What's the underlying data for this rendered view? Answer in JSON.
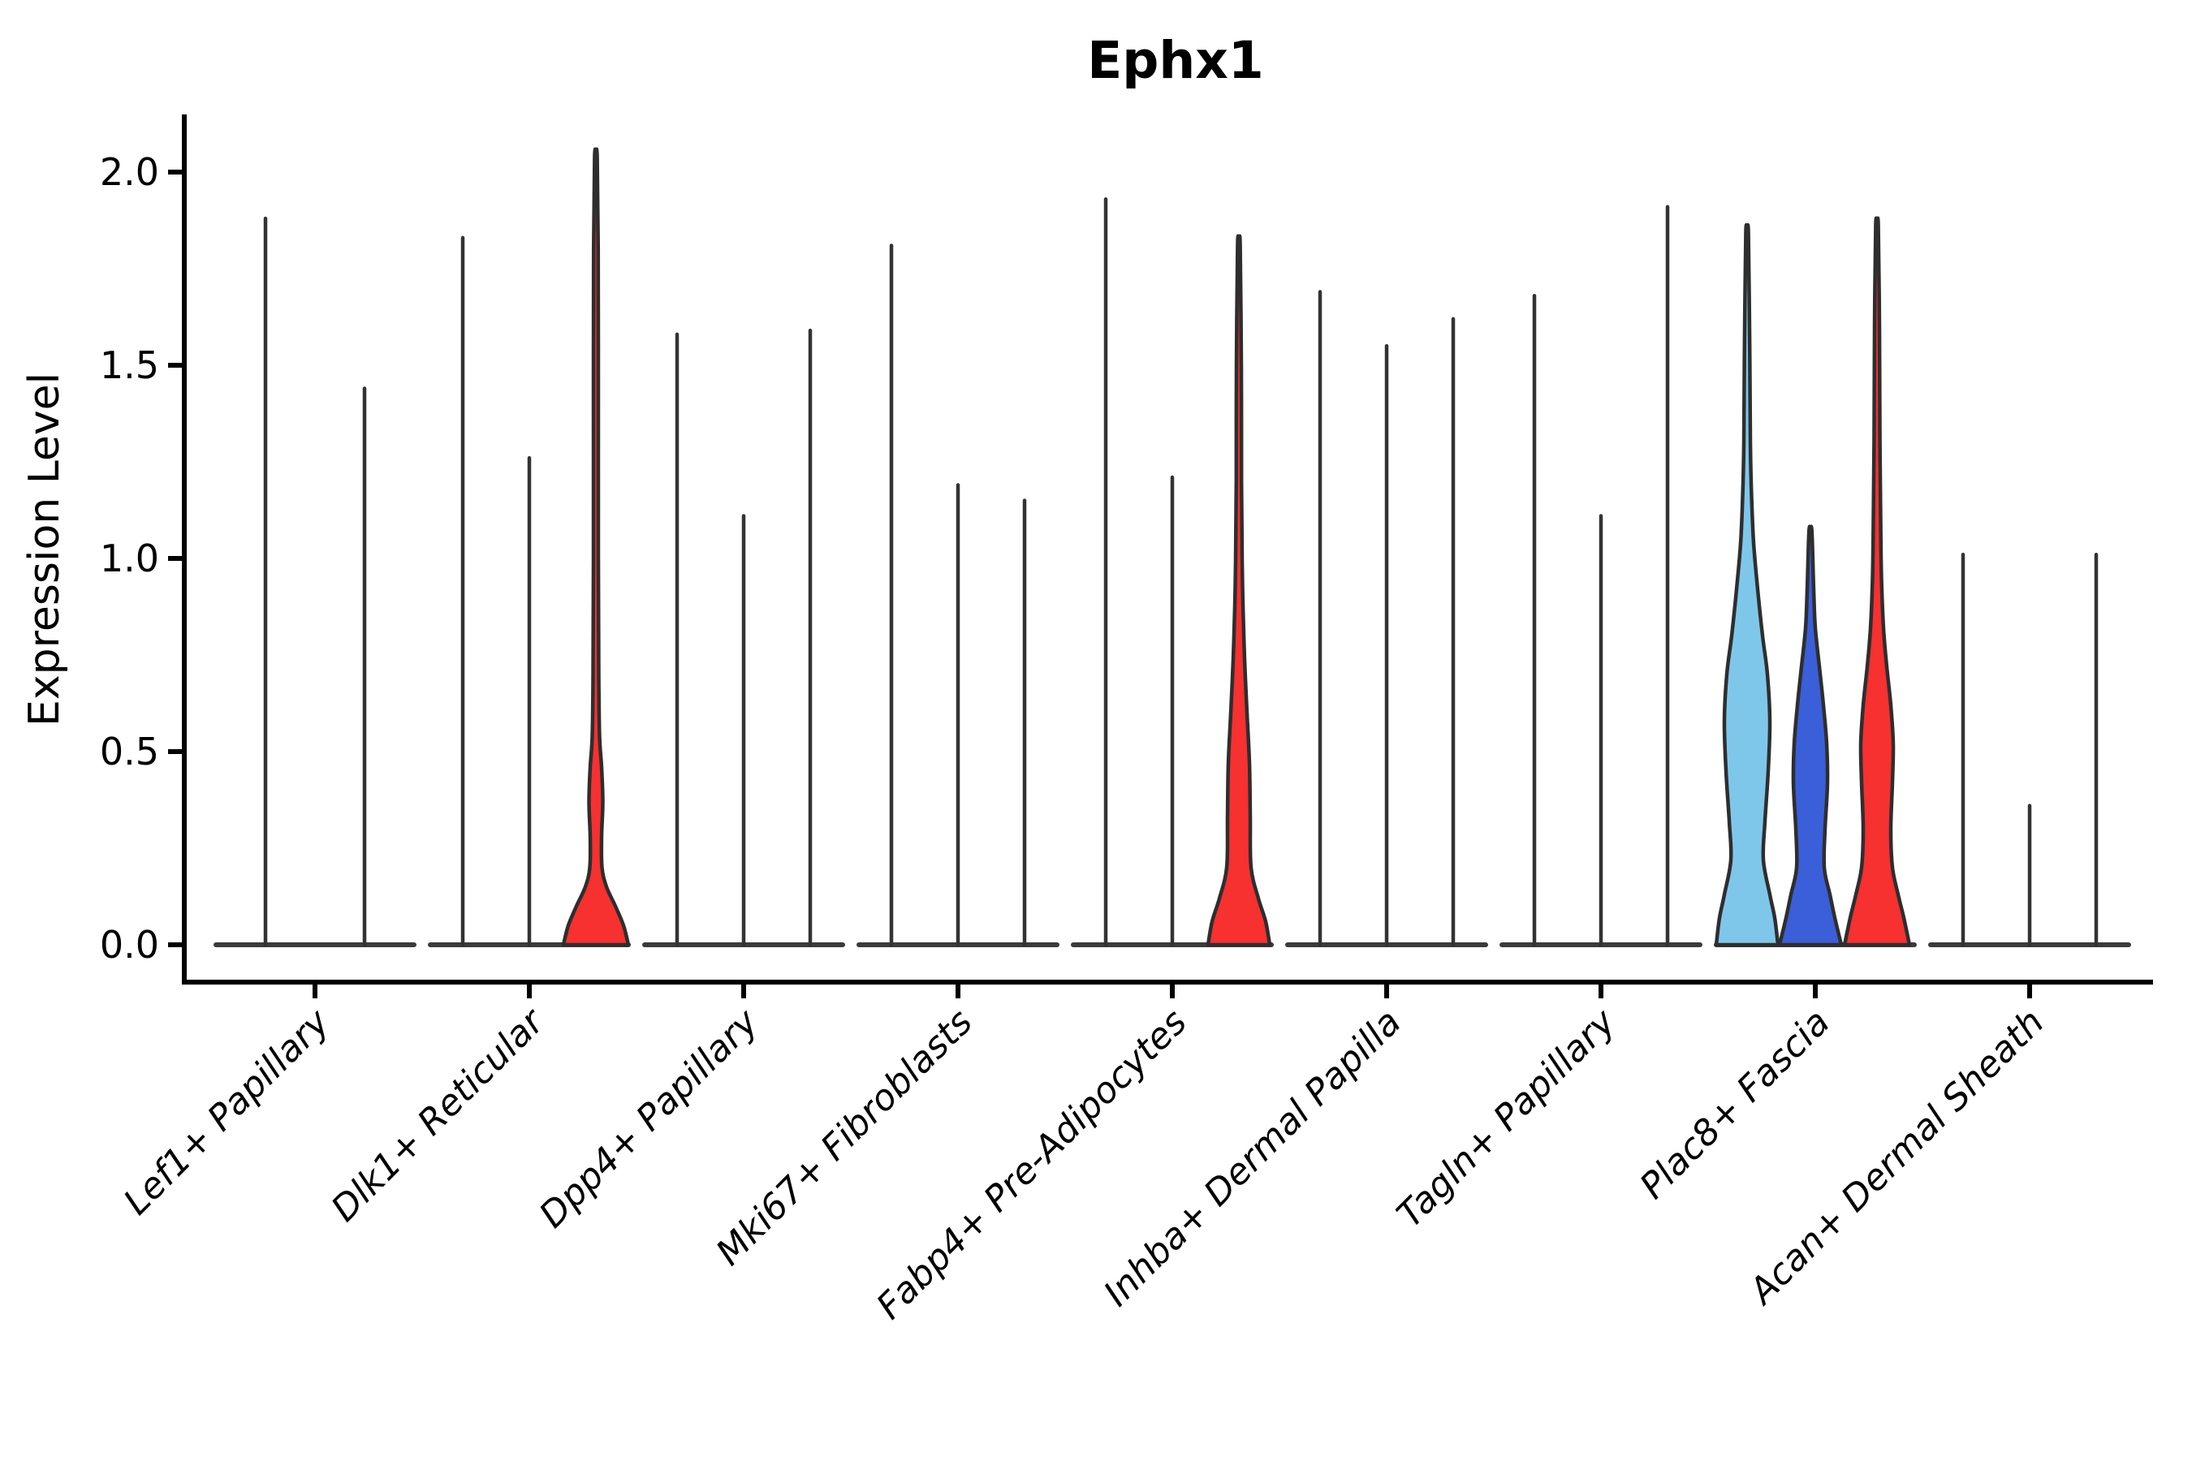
{
  "title": "Ephx1",
  "y_axis": {
    "label": "Expression Level",
    "tick_labels": [
      "0.0",
      "0.5",
      "1.0",
      "1.5",
      "2.0"
    ]
  },
  "chart_data": {
    "type": "violin",
    "title": "Ephx1",
    "xlabel": "",
    "ylabel": "Expression Level",
    "ylim": [
      -0.1,
      2.15
    ],
    "y_ticks": [
      0.0,
      0.5,
      1.0,
      1.5,
      2.0
    ],
    "grid": false,
    "legend": "none",
    "tick_label_style": "italic, rotated 45deg",
    "categories": [
      "Lef1+ Papillary",
      "Dlk1+ Reticular",
      "Dpp4+ Papillary",
      "Mki67+ Fibroblasts",
      "Fabp4+ Pre-Adipocytes",
      "Inhba+ Dermal Papilla",
      "Tagln+ Papillary",
      "Plac8+ Fascia",
      "Acan+ Dermal Sheath"
    ],
    "palette": {
      "light_blue": "#7fc7ea",
      "dark_blue": "#3a5fd9",
      "red": "#f73030",
      "outline": "#2e2e2e",
      "spike_line": "#333333",
      "baseline": "#3b3b3b"
    },
    "groups": [
      {
        "category": "Lef1+ Papillary",
        "violins": [
          {
            "offset": -61,
            "max": 1.88,
            "style": "line"
          },
          {
            "offset": 61,
            "max": 1.44,
            "style": "line"
          }
        ]
      },
      {
        "category": "Dlk1+ Reticular",
        "violins": [
          {
            "offset": -82,
            "max": 1.83,
            "style": "line"
          },
          {
            "offset": 0,
            "max": 1.26,
            "style": "line"
          },
          {
            "offset": 82,
            "max": 2.04,
            "style": "violin",
            "fill": "#f73030",
            "profile": [
              [
                0,
                40
              ],
              [
                0.05,
                34
              ],
              [
                0.1,
                24
              ],
              [
                0.15,
                13
              ],
              [
                0.2,
                7.5
              ],
              [
                0.28,
                7
              ],
              [
                0.37,
                8.5
              ],
              [
                0.46,
                7
              ],
              [
                0.54,
                4.5
              ],
              [
                0.7,
                3.5
              ],
              [
                1.0,
                3
              ],
              [
                1.4,
                3
              ],
              [
                1.8,
                2.8
              ],
              [
                2.04,
                1.6
              ]
            ]
          }
        ]
      },
      {
        "category": "Dpp4+ Papillary",
        "violins": [
          {
            "offset": -82,
            "max": 1.58,
            "style": "line"
          },
          {
            "offset": 0,
            "max": 1.11,
            "style": "line"
          },
          {
            "offset": 82,
            "max": 1.59,
            "style": "line"
          }
        ]
      },
      {
        "category": "Mki67+ Fibroblasts",
        "violins": [
          {
            "offset": -82,
            "max": 1.81,
            "style": "line"
          },
          {
            "offset": 0,
            "max": 1.19,
            "style": "line"
          },
          {
            "offset": 82,
            "max": 1.15,
            "style": "line"
          }
        ]
      },
      {
        "category": "Fabp4+ Pre-Adipocytes",
        "violins": [
          {
            "offset": -82,
            "max": 1.93,
            "style": "line"
          },
          {
            "offset": 0,
            "max": 1.21,
            "style": "line"
          },
          {
            "offset": 82,
            "max": 1.81,
            "style": "violin",
            "fill": "#f73030",
            "profile": [
              [
                0,
                38
              ],
              [
                0.06,
                33
              ],
              [
                0.12,
                24
              ],
              [
                0.2,
                15
              ],
              [
                0.33,
                14
              ],
              [
                0.47,
                13
              ],
              [
                0.6,
                10
              ],
              [
                0.74,
                7
              ],
              [
                0.88,
                5
              ],
              [
                1.0,
                4
              ],
              [
                1.2,
                3.2
              ],
              [
                1.5,
                3
              ],
              [
                1.81,
                1.6
              ]
            ]
          }
        ]
      },
      {
        "category": "Inhba+ Dermal Papilla",
        "violins": [
          {
            "offset": -82,
            "max": 1.69,
            "style": "line"
          },
          {
            "offset": 0,
            "max": 1.55,
            "style": "line"
          },
          {
            "offset": 82,
            "max": 1.62,
            "style": "line"
          }
        ]
      },
      {
        "category": "Tagln+ Papillary",
        "violins": [
          {
            "offset": -82,
            "max": 1.68,
            "style": "line"
          },
          {
            "offset": 0,
            "max": 1.11,
            "style": "line"
          },
          {
            "offset": 82,
            "max": 1.91,
            "style": "line"
          }
        ]
      },
      {
        "category": "Plac8+ Fascia",
        "violins": [
          {
            "offset": -84,
            "max": 1.84,
            "style": "violin",
            "fill": "#7fc7ea",
            "profile": [
              [
                0,
                38
              ],
              [
                0.07,
                34
              ],
              [
                0.13,
                28
              ],
              [
                0.22,
                20
              ],
              [
                0.32,
                22
              ],
              [
                0.45,
                26
              ],
              [
                0.58,
                28
              ],
              [
                0.7,
                25
              ],
              [
                0.8,
                19
              ],
              [
                0.92,
                13
              ],
              [
                1.04,
                8
              ],
              [
                1.16,
                5.5
              ],
              [
                1.3,
                4
              ],
              [
                1.55,
                3.2
              ],
              [
                1.84,
                1.6
              ]
            ]
          },
          {
            "offset": -6,
            "max": 1.07,
            "style": "violin",
            "fill": "#3a5fd9",
            "profile": [
              [
                0,
                38
              ],
              [
                0.07,
                30
              ],
              [
                0.13,
                24
              ],
              [
                0.2,
                17
              ],
              [
                0.3,
                18
              ],
              [
                0.42,
                21
              ],
              [
                0.52,
                20
              ],
              [
                0.62,
                16
              ],
              [
                0.72,
                11
              ],
              [
                0.82,
                6
              ],
              [
                0.92,
                4
              ],
              [
                1.07,
                1.8
              ]
            ]
          },
          {
            "offset": 76,
            "max": 1.86,
            "style": "violin",
            "fill": "#f73030",
            "profile": [
              [
                0,
                40
              ],
              [
                0.07,
                33
              ],
              [
                0.13,
                26
              ],
              [
                0.2,
                19
              ],
              [
                0.3,
                17
              ],
              [
                0.42,
                19
              ],
              [
                0.52,
                20
              ],
              [
                0.62,
                17
              ],
              [
                0.72,
                12
              ],
              [
                0.82,
                8
              ],
              [
                0.95,
                5.5
              ],
              [
                1.1,
                4.5
              ],
              [
                1.3,
                3.6
              ],
              [
                1.6,
                3
              ],
              [
                1.86,
                1.6
              ]
            ]
          }
        ]
      },
      {
        "category": "Acan+ Dermal Sheath",
        "violins": [
          {
            "offset": -82,
            "max": 1.01,
            "style": "line"
          },
          {
            "offset": 0,
            "max": 0.36,
            "style": "line"
          },
          {
            "offset": 82,
            "max": 1.01,
            "style": "line"
          }
        ]
      }
    ]
  }
}
